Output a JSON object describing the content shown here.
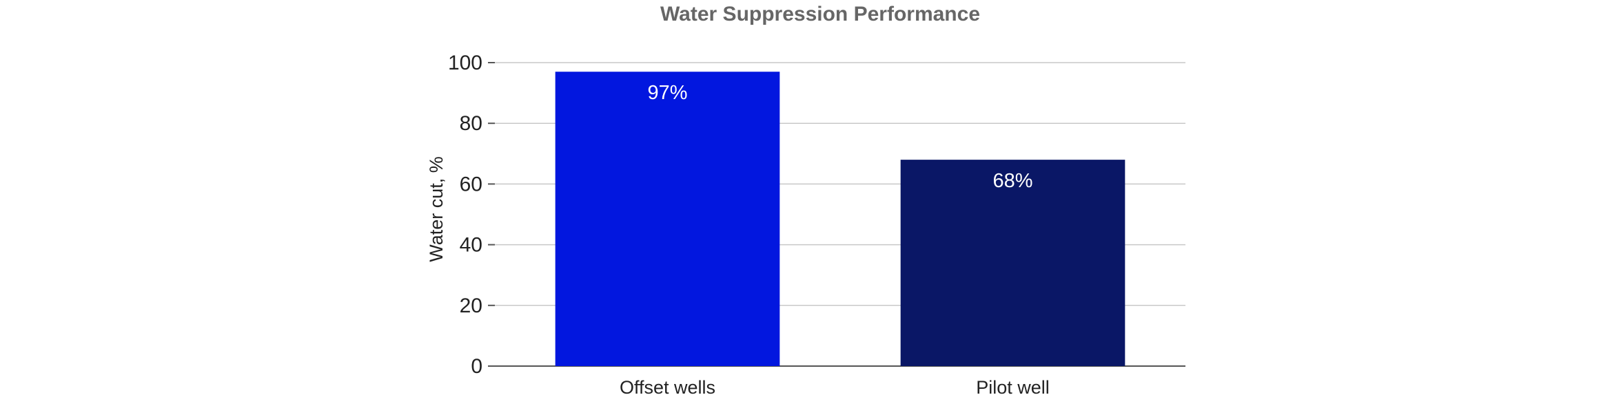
{
  "chart_data": {
    "type": "bar",
    "title": "Water Suppression Performance",
    "xlabel": "",
    "ylabel": "Water cut, %",
    "categories": [
      "Offset wells",
      "Pilot well"
    ],
    "values": [
      97,
      68
    ],
    "data_labels": [
      "97%",
      "68%"
    ],
    "ylim": [
      0,
      100
    ],
    "yticks": [
      0,
      20,
      40,
      60,
      80,
      100
    ],
    "ytick_labels": [
      "0",
      "20",
      "40",
      "60",
      "80",
      "100"
    ],
    "bar_colors": [
      "#0217df",
      "#0a1766"
    ],
    "grid": true,
    "legend": "none"
  }
}
